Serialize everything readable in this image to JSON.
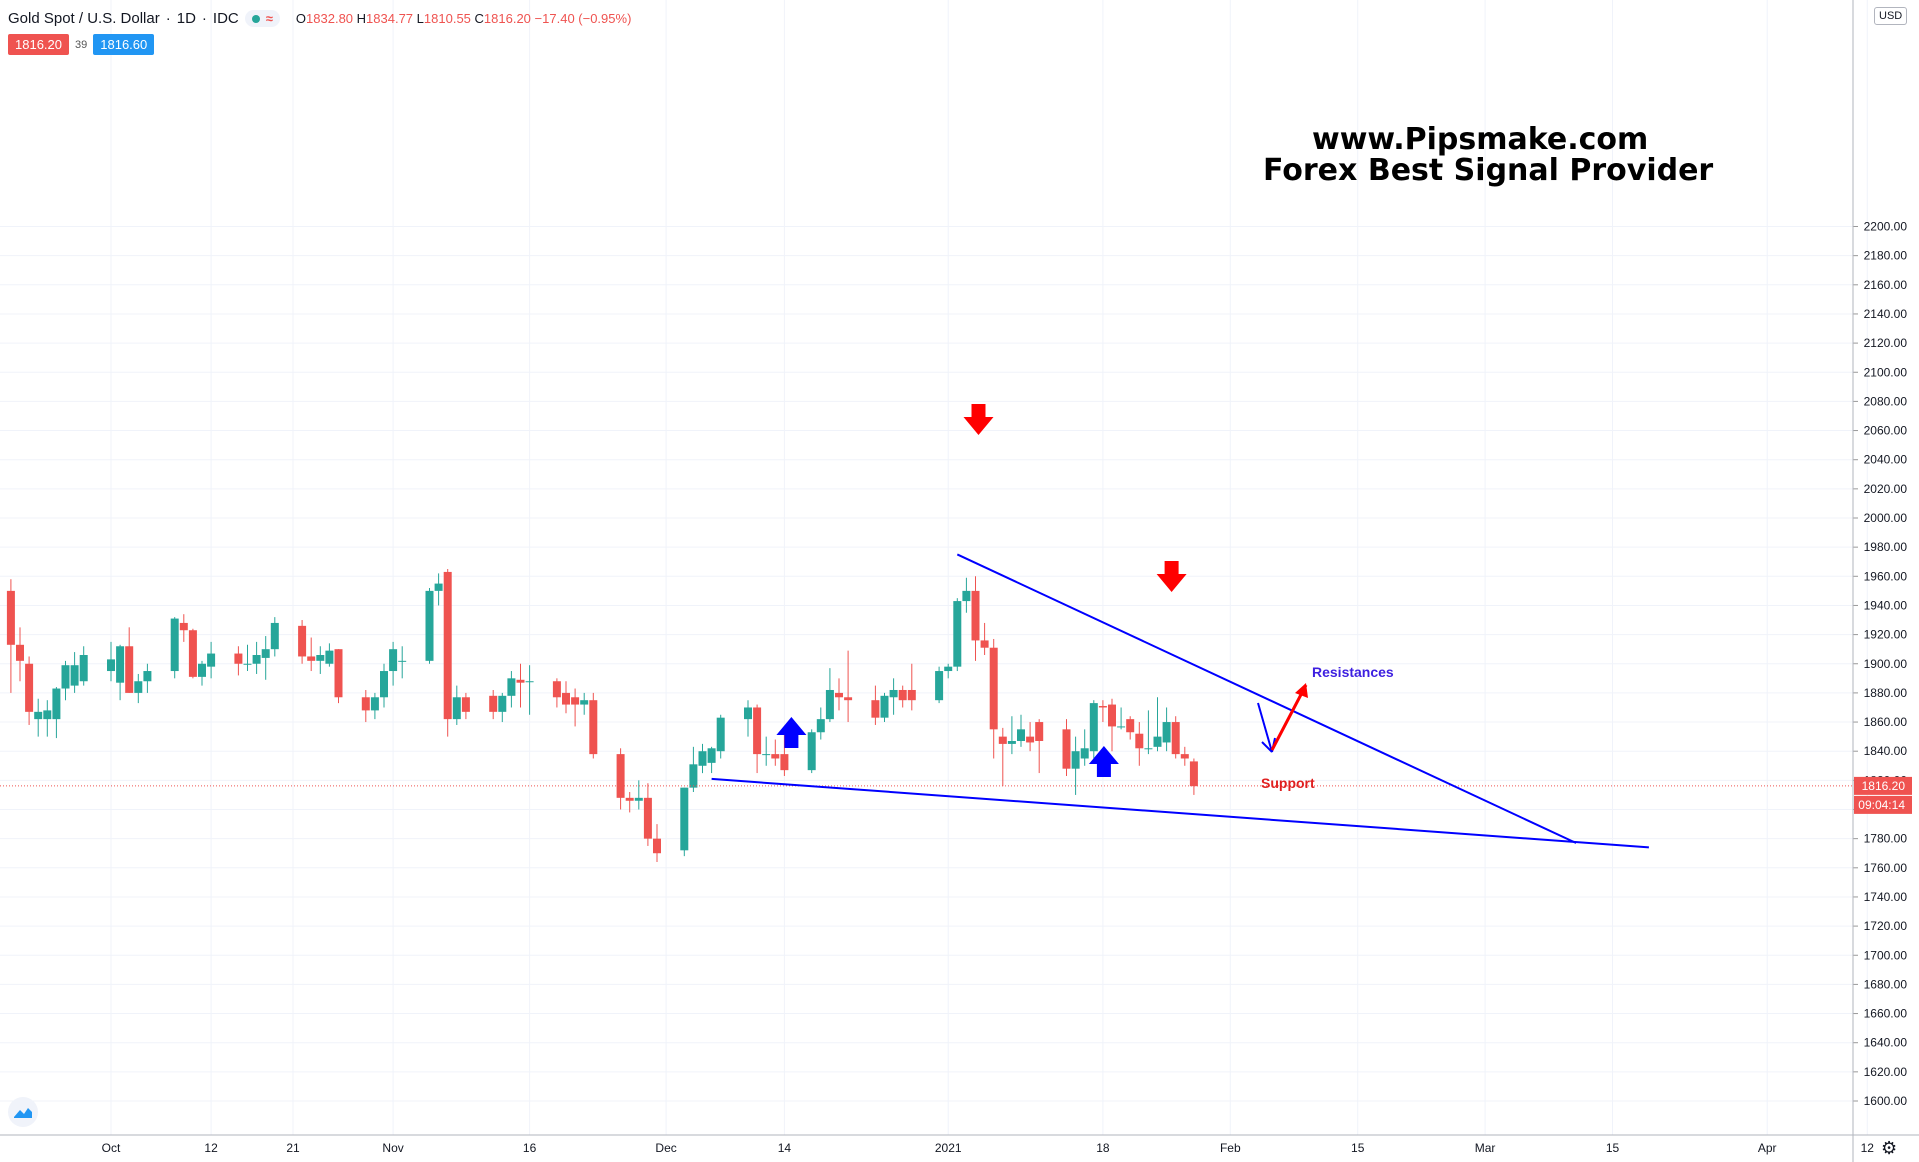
{
  "legend": {
    "symbol": "Gold Spot / U.S. Dollar",
    "interval": "1D",
    "source": "IDC",
    "open_label": "O",
    "open": "1832.80",
    "high_label": "H",
    "high": "1834.77",
    "low_label": "L",
    "low": "1810.55",
    "close_label": "C",
    "close": "1816.20",
    "change": "−17.40 (−0.95%)",
    "wave_icon": "≈"
  },
  "prices": {
    "bid": "1816.20",
    "spread": "39",
    "ask": "1816.60"
  },
  "axis": {
    "currency": "USD",
    "current_price": "1816.20",
    "countdown": "09:04:14",
    "y_ticks": [
      1600,
      1620,
      1640,
      1660,
      1680,
      1700,
      1720,
      1740,
      1760,
      1780,
      1800,
      1820,
      1840,
      1860,
      1880,
      1900,
      1920,
      1940,
      1960,
      1980,
      2000,
      2020,
      2040,
      2060,
      2080,
      2100,
      2120,
      2140,
      2160,
      2180,
      2200
    ],
    "x_labels": [
      {
        "day": 0,
        "text": "Oct"
      },
      {
        "day": 11,
        "text": "12"
      },
      {
        "day": 20,
        "text": "21"
      },
      {
        "day": 31,
        "text": "Nov"
      },
      {
        "day": 46,
        "text": "16"
      },
      {
        "day": 61,
        "text": "Dec"
      },
      {
        "day": 74,
        "text": "14"
      },
      {
        "day": 92,
        "text": "2021"
      },
      {
        "day": 109,
        "text": "18"
      },
      {
        "day": 123,
        "text": "Feb"
      },
      {
        "day": 137,
        "text": "15"
      },
      {
        "day": 151,
        "text": "Mar"
      },
      {
        "day": 165,
        "text": "15"
      },
      {
        "day": 182,
        "text": "Apr"
      },
      {
        "day": 193,
        "text": "12"
      }
    ]
  },
  "watermark": {
    "line1": "www.Pipsmake.com",
    "line2": "Forex Best Signal Provider"
  },
  "annotations": {
    "resistance": "Resistances",
    "support": "Support"
  },
  "colors": {
    "up": "#26a69a",
    "down": "#ef5350",
    "trend": "#0000ff",
    "arrow_red": "#ff0000",
    "arrow_blue": "#0000ff",
    "grid": "#f0f3fa"
  },
  "chart_data": {
    "type": "candlestick",
    "title": "Gold Spot / U.S. Dollar",
    "ylabel": "USD",
    "ylim": [
      1590,
      2210
    ],
    "candles": [
      {
        "d": -11,
        "o": 1950,
        "h": 1958,
        "l": 1880,
        "c": 1913
      },
      {
        "d": -10,
        "o": 1913,
        "h": 1925,
        "l": 1888,
        "c": 1902
      },
      {
        "d": -9,
        "o": 1900,
        "h": 1905,
        "l": 1858,
        "c": 1867
      },
      {
        "d": -8,
        "o": 1862,
        "h": 1876,
        "l": 1850,
        "c": 1867
      },
      {
        "d": -7,
        "o": 1862,
        "h": 1875,
        "l": 1850,
        "c": 1868
      },
      {
        "d": -6,
        "o": 1862,
        "h": 1884,
        "l": 1849,
        "c": 1883
      },
      {
        "d": -5,
        "o": 1883,
        "h": 1902,
        "l": 1875,
        "c": 1899
      },
      {
        "d": -4,
        "o": 1885,
        "h": 1908,
        "l": 1880,
        "c": 1899
      },
      {
        "d": -3,
        "o": 1888,
        "h": 1912,
        "l": 1885,
        "c": 1906
      },
      {
        "d": 0,
        "o": 1895,
        "h": 1915,
        "l": 1888,
        "c": 1903
      },
      {
        "d": 1,
        "o": 1887,
        "h": 1913,
        "l": 1875,
        "c": 1912
      },
      {
        "d": 2,
        "o": 1912,
        "h": 1925,
        "l": 1880,
        "c": 1880
      },
      {
        "d": 3,
        "o": 1880,
        "h": 1893,
        "l": 1873,
        "c": 1888
      },
      {
        "d": 4,
        "o": 1888,
        "h": 1900,
        "l": 1880,
        "c": 1895
      },
      {
        "d": 7,
        "o": 1895,
        "h": 1932,
        "l": 1890,
        "c": 1931
      },
      {
        "d": 8,
        "o": 1928,
        "h": 1934,
        "l": 1915,
        "c": 1923
      },
      {
        "d": 9,
        "o": 1923,
        "h": 1924,
        "l": 1890,
        "c": 1891
      },
      {
        "d": 10,
        "o": 1891,
        "h": 1902,
        "l": 1885,
        "c": 1900
      },
      {
        "d": 11,
        "o": 1898,
        "h": 1915,
        "l": 1890,
        "c": 1907
      },
      {
        "d": 14,
        "o": 1907,
        "h": 1912,
        "l": 1892,
        "c": 1900
      },
      {
        "d": 15,
        "o": 1900,
        "h": 1913,
        "l": 1895,
        "c": 1900
      },
      {
        "d": 16,
        "o": 1900,
        "h": 1915,
        "l": 1893,
        "c": 1906
      },
      {
        "d": 17,
        "o": 1904,
        "h": 1919,
        "l": 1889,
        "c": 1910
      },
      {
        "d": 18,
        "o": 1910,
        "h": 1932,
        "l": 1905,
        "c": 1928
      },
      {
        "d": 21,
        "o": 1926,
        "h": 1930,
        "l": 1900,
        "c": 1905
      },
      {
        "d": 22,
        "o": 1905,
        "h": 1918,
        "l": 1895,
        "c": 1902
      },
      {
        "d": 23,
        "o": 1902,
        "h": 1912,
        "l": 1893,
        "c": 1906
      },
      {
        "d": 24,
        "o": 1900,
        "h": 1914,
        "l": 1898,
        "c": 1909
      },
      {
        "d": 25,
        "o": 1910,
        "h": 1910,
        "l": 1873,
        "c": 1877
      },
      {
        "d": 28,
        "o": 1877,
        "h": 1882,
        "l": 1860,
        "c": 1868
      },
      {
        "d": 29,
        "o": 1868,
        "h": 1880,
        "l": 1862,
        "c": 1877
      },
      {
        "d": 30,
        "o": 1877,
        "h": 1900,
        "l": 1870,
        "c": 1895
      },
      {
        "d": 31,
        "o": 1895,
        "h": 1915,
        "l": 1885,
        "c": 1910
      },
      {
        "d": 32,
        "o": 1902,
        "h": 1912,
        "l": 1890,
        "c": 1902
      },
      {
        "d": 35,
        "o": 1902,
        "h": 1952,
        "l": 1900,
        "c": 1950
      },
      {
        "d": 36,
        "o": 1950,
        "h": 1962,
        "l": 1940,
        "c": 1955
      },
      {
        "d": 37,
        "o": 1963,
        "h": 1965,
        "l": 1850,
        "c": 1862
      },
      {
        "d": 38,
        "o": 1862,
        "h": 1885,
        "l": 1858,
        "c": 1877
      },
      {
        "d": 39,
        "o": 1877,
        "h": 1880,
        "l": 1862,
        "c": 1867
      },
      {
        "d": 42,
        "o": 1878,
        "h": 1882,
        "l": 1862,
        "c": 1867
      },
      {
        "d": 43,
        "o": 1867,
        "h": 1880,
        "l": 1860,
        "c": 1878
      },
      {
        "d": 44,
        "o": 1878,
        "h": 1895,
        "l": 1870,
        "c": 1890
      },
      {
        "d": 45,
        "o": 1889,
        "h": 1900,
        "l": 1870,
        "c": 1887
      },
      {
        "d": 46,
        "o": 1888,
        "h": 1899,
        "l": 1865,
        "c": 1888
      },
      {
        "d": 49,
        "o": 1888,
        "h": 1890,
        "l": 1870,
        "c": 1877
      },
      {
        "d": 50,
        "o": 1880,
        "h": 1888,
        "l": 1866,
        "c": 1872
      },
      {
        "d": 51,
        "o": 1877,
        "h": 1883,
        "l": 1857,
        "c": 1872
      },
      {
        "d": 52,
        "o": 1872,
        "h": 1880,
        "l": 1865,
        "c": 1875
      },
      {
        "d": 53,
        "o": 1875,
        "h": 1880,
        "l": 1835,
        "c": 1838
      },
      {
        "d": 56,
        "o": 1838,
        "h": 1842,
        "l": 1800,
        "c": 1808
      },
      {
        "d": 57,
        "o": 1808,
        "h": 1812,
        "l": 1798,
        "c": 1806
      },
      {
        "d": 58,
        "o": 1806,
        "h": 1820,
        "l": 1800,
        "c": 1808
      },
      {
        "d": 59,
        "o": 1808,
        "h": 1818,
        "l": 1775,
        "c": 1780
      },
      {
        "d": 60,
        "o": 1780,
        "h": 1790,
        "l": 1764,
        "c": 1770
      },
      {
        "d": 63,
        "o": 1772,
        "h": 1815,
        "l": 1768,
        "c": 1815
      },
      {
        "d": 64,
        "o": 1815,
        "h": 1843,
        "l": 1812,
        "c": 1831
      },
      {
        "d": 65,
        "o": 1830,
        "h": 1845,
        "l": 1825,
        "c": 1840
      },
      {
        "d": 66,
        "o": 1832,
        "h": 1843,
        "l": 1825,
        "c": 1842
      },
      {
        "d": 67,
        "o": 1840,
        "h": 1865,
        "l": 1835,
        "c": 1863
      },
      {
        "d": 70,
        "o": 1862,
        "h": 1875,
        "l": 1850,
        "c": 1870
      },
      {
        "d": 71,
        "o": 1870,
        "h": 1872,
        "l": 1825,
        "c": 1838
      },
      {
        "d": 72,
        "o": 1838,
        "h": 1850,
        "l": 1830,
        "c": 1838
      },
      {
        "d": 73,
        "o": 1838,
        "h": 1848,
        "l": 1830,
        "c": 1835
      },
      {
        "d": 74,
        "o": 1838,
        "h": 1857,
        "l": 1823,
        "c": 1827
      },
      {
        "d": 77,
        "o": 1827,
        "h": 1855,
        "l": 1825,
        "c": 1853
      },
      {
        "d": 78,
        "o": 1853,
        "h": 1870,
        "l": 1848,
        "c": 1862
      },
      {
        "d": 79,
        "o": 1862,
        "h": 1897,
        "l": 1860,
        "c": 1882
      },
      {
        "d": 80,
        "o": 1880,
        "h": 1890,
        "l": 1868,
        "c": 1877
      },
      {
        "d": 81,
        "o": 1877,
        "h": 1909,
        "l": 1860,
        "c": 1875
      },
      {
        "d": 84,
        "o": 1875,
        "h": 1885,
        "l": 1858,
        "c": 1863
      },
      {
        "d": 85,
        "o": 1863,
        "h": 1880,
        "l": 1860,
        "c": 1878
      },
      {
        "d": 86,
        "o": 1877,
        "h": 1890,
        "l": 1865,
        "c": 1882
      },
      {
        "d": 87,
        "o": 1882,
        "h": 1885,
        "l": 1870,
        "c": 1875
      },
      {
        "d": 88,
        "o": 1882,
        "h": 1900,
        "l": 1868,
        "c": 1875
      },
      {
        "d": 91,
        "o": 1875,
        "h": 1898,
        "l": 1873,
        "c": 1895
      },
      {
        "d": 92,
        "o": 1895,
        "h": 1900,
        "l": 1890,
        "c": 1898
      },
      {
        "d": 93,
        "o": 1898,
        "h": 1945,
        "l": 1895,
        "c": 1943
      },
      {
        "d": 94,
        "o": 1943,
        "h": 1959,
        "l": 1935,
        "c": 1950
      },
      {
        "d": 95,
        "o": 1950,
        "h": 1960,
        "l": 1902,
        "c": 1916
      },
      {
        "d": 96,
        "o": 1916,
        "h": 1928,
        "l": 1906,
        "c": 1911
      },
      {
        "d": 97,
        "o": 1911,
        "h": 1917,
        "l": 1835,
        "c": 1855
      },
      {
        "d": 98,
        "o": 1850,
        "h": 1856,
        "l": 1816,
        "c": 1845
      },
      {
        "d": 99,
        "o": 1845,
        "h": 1864,
        "l": 1838,
        "c": 1847
      },
      {
        "d": 100,
        "o": 1847,
        "h": 1865,
        "l": 1843,
        "c": 1855
      },
      {
        "d": 101,
        "o": 1850,
        "h": 1860,
        "l": 1840,
        "c": 1846
      },
      {
        "d": 102,
        "o": 1860,
        "h": 1862,
        "l": 1825,
        "c": 1847
      },
      {
        "d": 105,
        "o": 1855,
        "h": 1862,
        "l": 1823,
        "c": 1828
      },
      {
        "d": 106,
        "o": 1828,
        "h": 1850,
        "l": 1810,
        "c": 1840
      },
      {
        "d": 107,
        "o": 1835,
        "h": 1855,
        "l": 1830,
        "c": 1842
      },
      {
        "d": 108,
        "o": 1840,
        "h": 1875,
        "l": 1835,
        "c": 1873
      },
      {
        "d": 109,
        "o": 1871,
        "h": 1875,
        "l": 1860,
        "c": 1870
      },
      {
        "d": 110,
        "o": 1872,
        "h": 1876,
        "l": 1840,
        "c": 1857
      },
      {
        "d": 111,
        "o": 1857,
        "h": 1870,
        "l": 1855,
        "c": 1857
      },
      {
        "d": 112,
        "o": 1862,
        "h": 1864,
        "l": 1848,
        "c": 1853
      },
      {
        "d": 113,
        "o": 1852,
        "h": 1860,
        "l": 1830,
        "c": 1842
      },
      {
        "d": 114,
        "o": 1842,
        "h": 1868,
        "l": 1838,
        "c": 1842
      },
      {
        "d": 115,
        "o": 1843,
        "h": 1877,
        "l": 1840,
        "c": 1850
      },
      {
        "d": 116,
        "o": 1846,
        "h": 1870,
        "l": 1840,
        "c": 1860
      },
      {
        "d": 117,
        "o": 1860,
        "h": 1864,
        "l": 1835,
        "c": 1838
      },
      {
        "d": 118,
        "o": 1838,
        "h": 1843,
        "l": 1830,
        "c": 1835
      },
      {
        "d": 119,
        "o": 1833,
        "h": 1835,
        "l": 1810,
        "c": 1816
      }
    ],
    "trendlines": {
      "resistance": [
        {
          "d": 93,
          "p": 1975
        },
        {
          "d": 161,
          "p": 1777
        }
      ],
      "support": [
        {
          "d": 66,
          "p": 1821
        },
        {
          "d": 169,
          "p": 1774
        }
      ]
    }
  }
}
